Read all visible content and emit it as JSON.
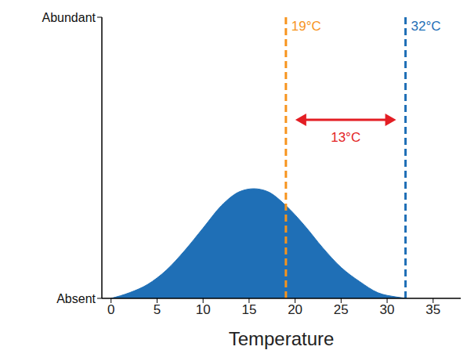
{
  "chart_data": {
    "type": "area",
    "x": [
      0,
      2,
      4,
      6,
      8,
      10,
      12,
      14,
      15.5,
      17,
      19,
      21,
      23,
      25,
      27,
      29,
      31,
      32
    ],
    "values": [
      0,
      0.02,
      0.05,
      0.1,
      0.17,
      0.25,
      0.33,
      0.38,
      0.39,
      0.38,
      0.33,
      0.26,
      0.18,
      0.11,
      0.06,
      0.02,
      0.005,
      0
    ],
    "color": "#1f6fb6",
    "xlabel": "Temperature",
    "xlim": [
      -1,
      38
    ],
    "xticks": [
      0,
      5,
      10,
      15,
      20,
      25,
      30,
      35
    ],
    "ylim": [
      0,
      1
    ],
    "yticks": [
      {
        "value": 0,
        "label": "Absent"
      },
      {
        "value": 1,
        "label": "Abundant"
      }
    ],
    "grid": false,
    "annotations": [
      {
        "x": 19,
        "label": "19°C",
        "color": "#f7941d",
        "line_style": "dashed"
      },
      {
        "x": 32,
        "label": "32°C",
        "color": "#1f6fb6",
        "line_style": "dashed"
      },
      {
        "start": 19,
        "end": 32,
        "label": "13°C",
        "color": "#e31e24",
        "marker": "arrow"
      }
    ]
  }
}
